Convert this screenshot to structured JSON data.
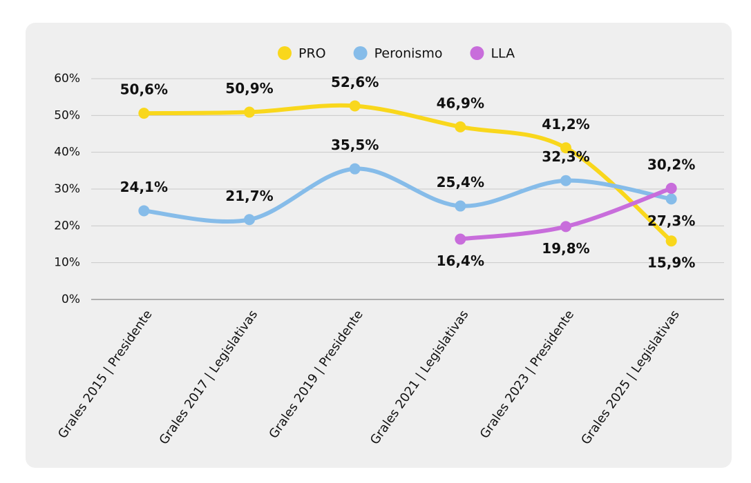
{
  "chart_data": {
    "type": "line",
    "categories": [
      "Grales 2015 | Presidente",
      "Grales 2017 | Legislativas",
      "Grales 2019 | Presidente",
      "Grales 2021 | Legislativas",
      "Grales 2023 | Presidente",
      "Grales 2025 | Legislativas"
    ],
    "series": [
      {
        "name": "PRO",
        "color": "#f9d71c",
        "values": [
          50.6,
          50.9,
          52.6,
          46.9,
          41.2,
          15.9
        ],
        "value_labels": [
          "50,6%",
          "50,9%",
          "52,6%",
          "46,9%",
          "41,2%",
          "15,9%"
        ]
      },
      {
        "name": "Peronismo",
        "color": "#86bce9",
        "values": [
          24.1,
          21.7,
          35.5,
          25.4,
          32.3,
          27.3
        ],
        "value_labels": [
          "24,1%",
          "21,7%",
          "35,5%",
          "25,4%",
          "32,3%",
          "27,3%"
        ]
      },
      {
        "name": "LLA",
        "color": "#c86ddb",
        "values": [
          null,
          null,
          null,
          16.4,
          19.8,
          30.2
        ],
        "value_labels": [
          null,
          null,
          null,
          "16,4%",
          "19,8%",
          "30,2%"
        ]
      }
    ],
    "ylim": [
      0,
      60
    ],
    "yticks": [
      {
        "value": 0,
        "label": "0%"
      },
      {
        "value": 10,
        "label": "10%"
      },
      {
        "value": 20,
        "label": "20%"
      },
      {
        "value": 30,
        "label": "30%"
      },
      {
        "value": 40,
        "label": "40%"
      },
      {
        "value": 50,
        "label": "50%"
      },
      {
        "value": 60,
        "label": "60%"
      }
    ],
    "grid": true,
    "legend": "top"
  }
}
